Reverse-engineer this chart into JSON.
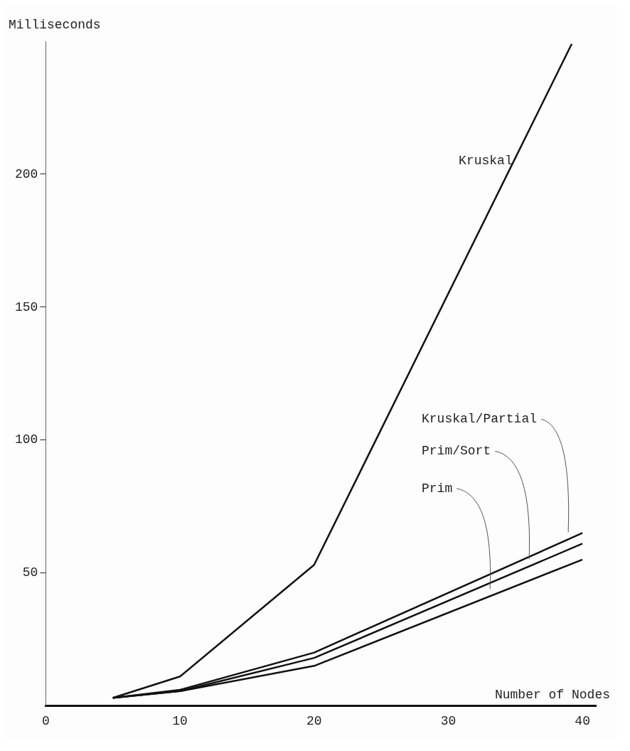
{
  "chart_data": {
    "type": "line",
    "xlabel": "Number of Nodes",
    "ylabel": "Milliseconds",
    "xlim": [
      0,
      41
    ],
    "xticks": [
      0,
      10,
      20,
      30,
      40
    ],
    "ylim": [
      0,
      250
    ],
    "yticks": [
      50,
      100,
      150,
      200
    ],
    "grid": false,
    "legend": false,
    "marker": "none",
    "line_style": "solid",
    "series": [
      {
        "name": "Kruskal",
        "color": "#111111",
        "x": [
          5,
          10,
          20,
          39.2
        ],
        "values": [
          3,
          11,
          53,
          249
        ]
      },
      {
        "name": "Kruskal/Partial",
        "color": "#111111",
        "x": [
          5,
          10,
          20,
          40
        ],
        "values": [
          3,
          6,
          20,
          65
        ]
      },
      {
        "name": "Prim/Sort",
        "color": "#111111",
        "x": [
          5,
          10,
          20,
          40
        ],
        "values": [
          3,
          5.5,
          18,
          61
        ]
      },
      {
        "name": "Prim",
        "color": "#111111",
        "x": [
          5,
          10,
          20,
          40
        ],
        "values": [
          3,
          5.5,
          15,
          55
        ]
      }
    ]
  }
}
